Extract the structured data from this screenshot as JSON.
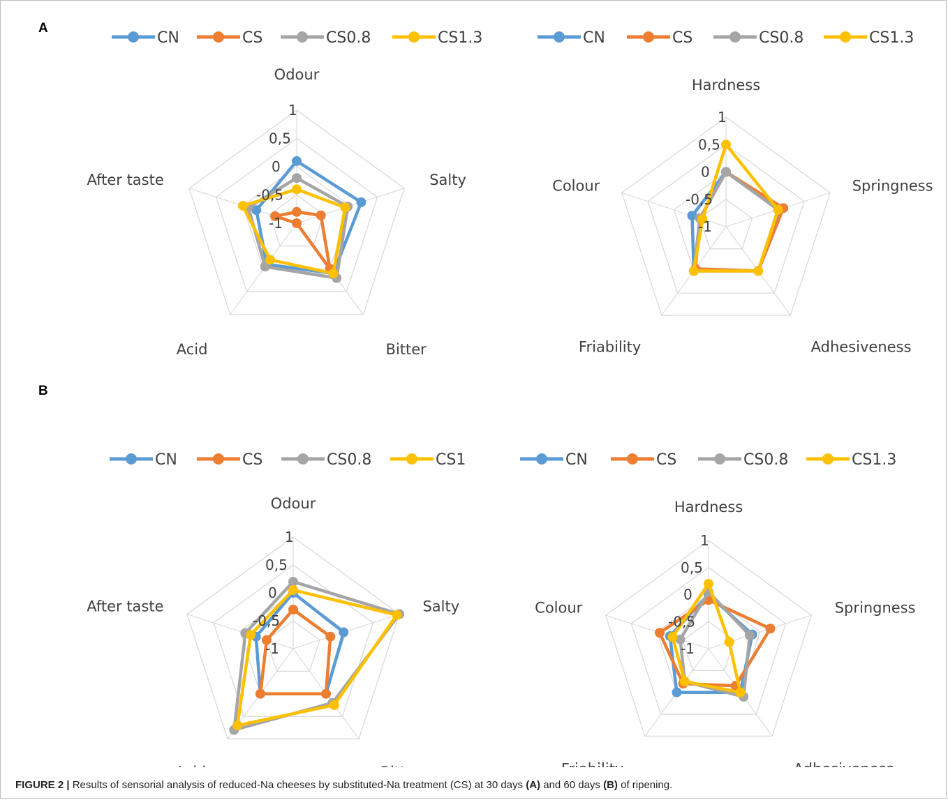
{
  "panels": {
    "a": "A",
    "b": "B"
  },
  "caption": {
    "figure_label": "FIGURE 2 |",
    "text_1": " Results of sensorial analysis of reduced-Na cheeses by substituted-Na treatment (CS) at 30 days ",
    "bold_a": "(A)",
    "text_2": " and 60 days ",
    "bold_b": "(B)",
    "text_3": " of ripening."
  },
  "colors": {
    "CN": "#5b9bd5",
    "CS": "#ed7d31",
    "CS0.8": "#a5a5a5",
    "CS1.3": "#ffc000",
    "grid": "#d9d9d9",
    "text": "#404040"
  },
  "chart_data": [
    {
      "type": "radar",
      "panel": "A",
      "axes": [
        "Odour",
        "Salty",
        "Bitter",
        "Acid",
        "After taste"
      ],
      "range": [
        -1,
        1
      ],
      "ticks": [
        "1",
        "0,5",
        "0",
        "-0,5",
        "-1"
      ],
      "legend": [
        "CN",
        "CS",
        "CS0.8",
        "CS1.3"
      ],
      "legend_position": "top",
      "series": [
        {
          "name": "CN",
          "values": [
            0.1,
            0.2,
            0.1,
            -0.1,
            -0.25
          ]
        },
        {
          "name": "CS",
          "values": [
            -0.8,
            -0.55,
            0.0,
            -1.0,
            -0.6
          ]
        },
        {
          "name": "CS0.8",
          "values": [
            -0.2,
            -0.05,
            0.2,
            -0.05,
            -0.1
          ]
        },
        {
          "name": "CS1.3",
          "values": [
            -0.4,
            -0.1,
            0.1,
            -0.2,
            0.0
          ]
        }
      ]
    },
    {
      "type": "radar",
      "panel": "A",
      "axes": [
        "Hardness",
        "Springness",
        "Adhesiveness",
        "Friability",
        "Colour"
      ],
      "range": [
        -1,
        1
      ],
      "ticks": [
        "1",
        "0,5",
        "0",
        "-0,5",
        "-1"
      ],
      "legend": [
        "CN",
        "CS",
        "CS0.8",
        "CS1.3"
      ],
      "legend_position": "top",
      "series": [
        {
          "name": "CN",
          "values": [
            0.0,
            0.05,
            0.0,
            0.0,
            -0.35
          ]
        },
        {
          "name": "CS",
          "values": [
            0.0,
            0.1,
            0.0,
            -0.05,
            -0.5
          ]
        },
        {
          "name": "CS0.8",
          "values": [
            0.0,
            0.0,
            0.0,
            0.0,
            -0.5
          ]
        },
        {
          "name": "CS1.3",
          "values": [
            0.5,
            0.0,
            0.0,
            0.0,
            -0.55
          ]
        }
      ]
    },
    {
      "type": "radar",
      "panel": "B",
      "axes": [
        "Odour",
        "Salty",
        "Bitter",
        "Acid",
        "After taste"
      ],
      "range": [
        -1,
        1
      ],
      "ticks": [
        "1",
        "0,5",
        "0",
        "-0,5",
        "-1"
      ],
      "legend": [
        "CN",
        "CS",
        "CS0.8",
        "CS1"
      ],
      "legend_position": "top",
      "series": [
        {
          "name": "CN",
          "values": [
            0.0,
            -0.05,
            0.0,
            0.0,
            -0.3
          ]
        },
        {
          "name": "CS",
          "values": [
            -0.3,
            -0.3,
            0.0,
            0.0,
            -0.5
          ]
        },
        {
          "name": "CS0.8",
          "values": [
            0.2,
            1.0,
            0.2,
            0.8,
            -0.1
          ]
        },
        {
          "name": "CS1",
          "values": [
            0.05,
            0.95,
            0.25,
            0.7,
            -0.2
          ]
        }
      ]
    },
    {
      "type": "radar",
      "panel": "B",
      "axes": [
        "Hardness",
        "Springness",
        "Adhesiveness",
        "Friability",
        "Colour"
      ],
      "range": [
        -1,
        1
      ],
      "ticks": [
        "1",
        "0,5",
        "0",
        "-0,5",
        "-1"
      ],
      "legend": [
        "CN",
        "CS",
        "CS0.8",
        "CS1.3"
      ],
      "legend_position": "top",
      "series": [
        {
          "name": "CN",
          "values": [
            0.0,
            -0.15,
            0.0,
            0.0,
            -0.25
          ]
        },
        {
          "name": "CS",
          "values": [
            -0.1,
            0.2,
            -0.15,
            -0.2,
            -0.05
          ]
        },
        {
          "name": "CS0.8",
          "values": [
            0.05,
            -0.2,
            0.1,
            -0.25,
            -0.45
          ]
        },
        {
          "name": "CS1.3",
          "values": [
            0.2,
            -0.6,
            0.0,
            -0.25,
            -0.3
          ]
        }
      ]
    }
  ]
}
